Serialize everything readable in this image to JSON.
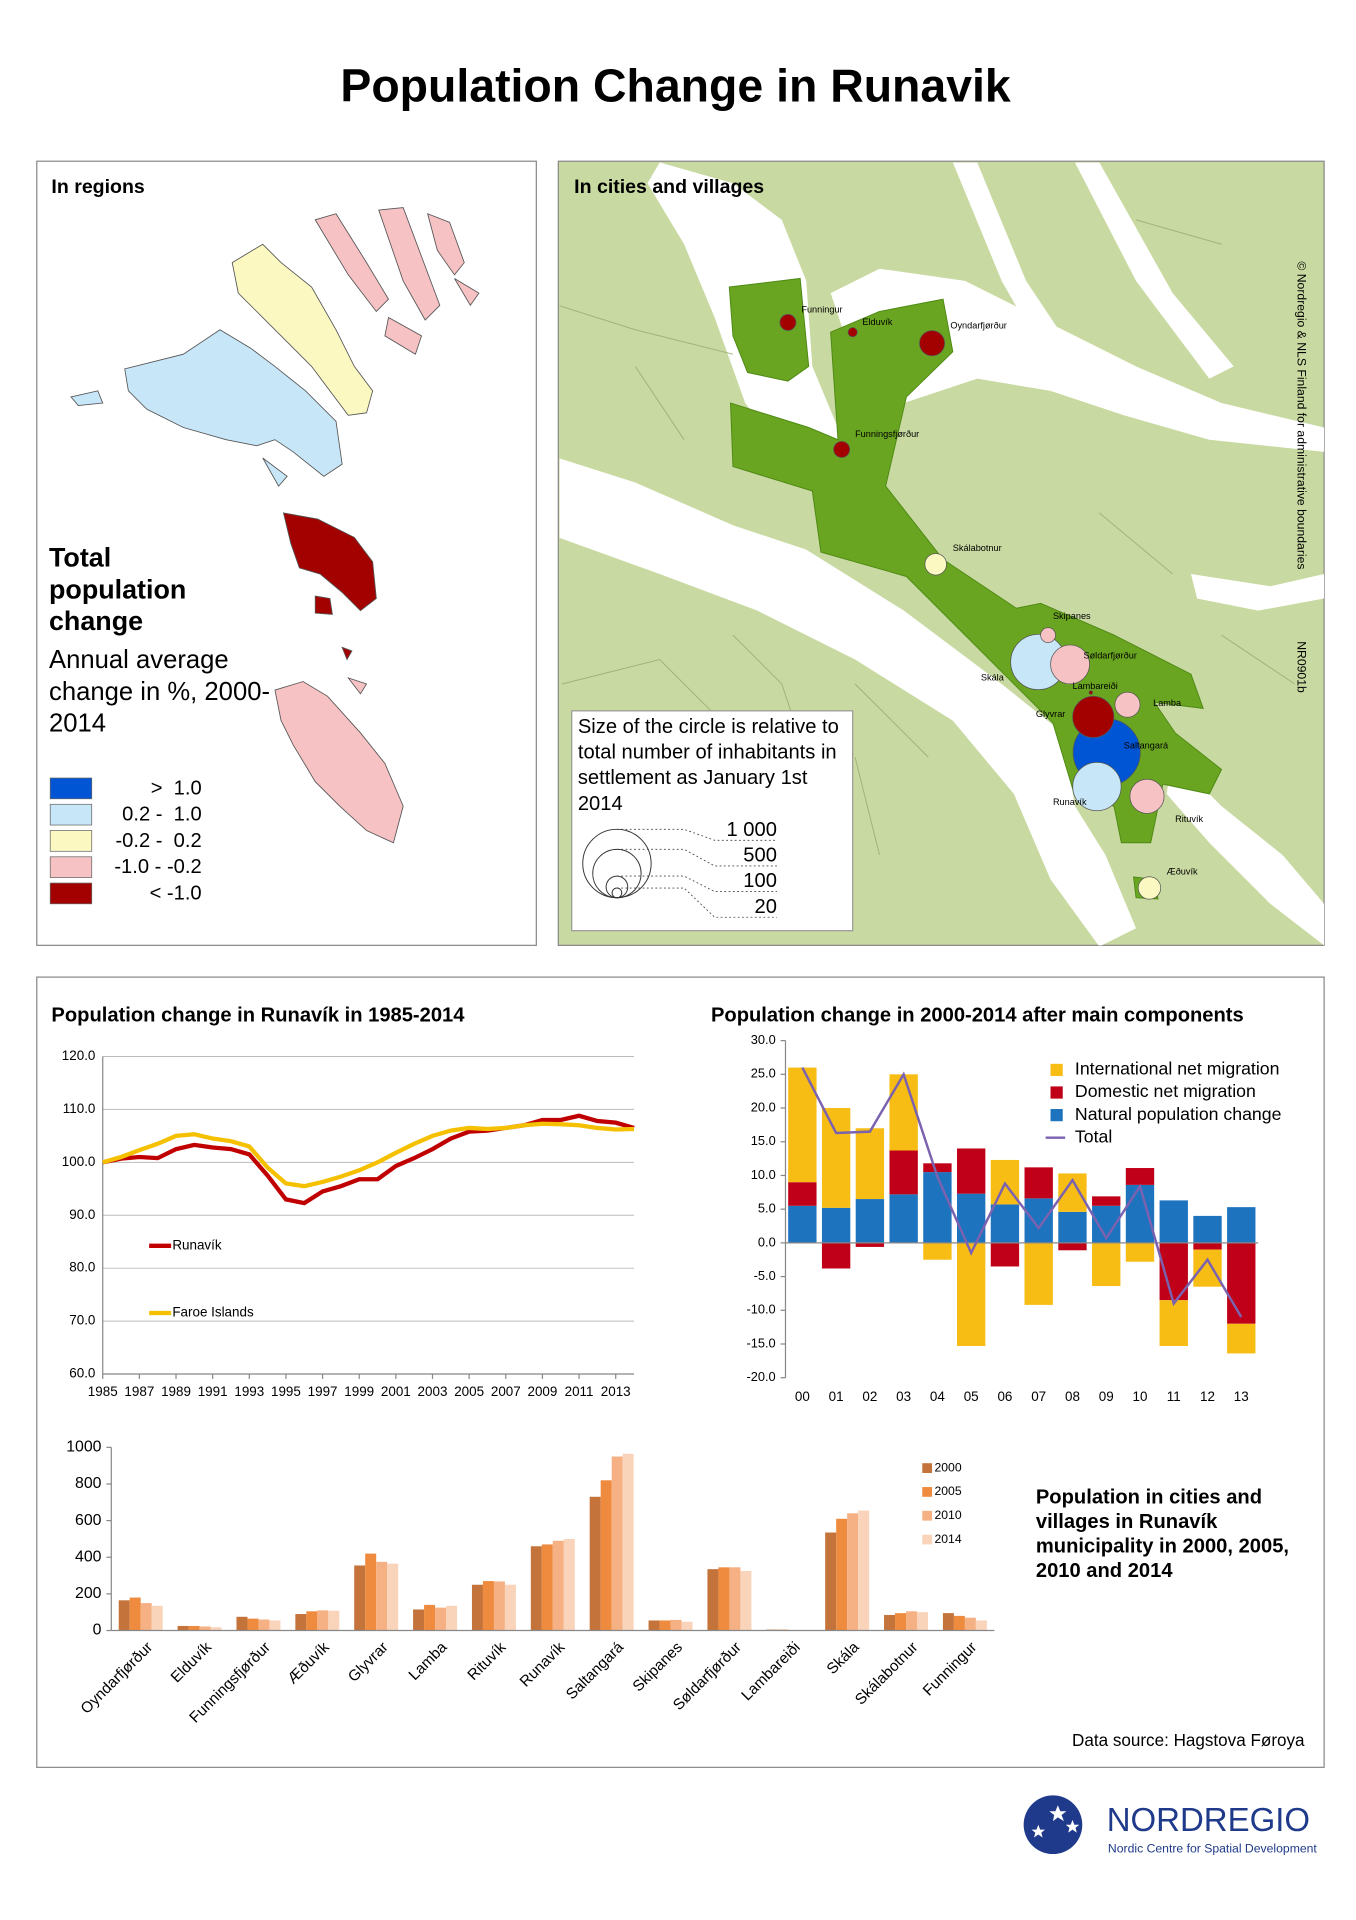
{
  "title": "Population Change in Runavik",
  "regions_map": {
    "heading": "In regions",
    "legend_title": "Total population change",
    "legend_subtitle": "Annual average change in %, 2000-2014",
    "classes": [
      {
        "label": ">  1.0",
        "color": "#0055d4"
      },
      {
        "label": "0.2 -  1.0",
        "color": "#c7e6f8"
      },
      {
        "label": "-0.2 -  0.2",
        "color": "#fbf8c2"
      },
      {
        "label": "-1.0 - -0.2",
        "color": "#f6c2c3"
      },
      {
        "label": "< -1.0",
        "color": "#a30000"
      }
    ]
  },
  "cities_map": {
    "heading": "In cities and villages",
    "copyright": "© Nordregio & NLS Finland for administrative boundaries",
    "map_id": "NR0901b",
    "circle_colors": [
      "#a30000",
      "#a30000",
      "#a30000",
      "#fbf8c2",
      "#a30000",
      "#f6c2c3",
      "#f6c2c3",
      "#c7e6f8",
      "#0055d4",
      "#f6c2c3",
      "#f6c2c3",
      "#a30000",
      "#c7e6f8",
      "#fbf8c2",
      "#a30000"
    ],
    "size_legend": {
      "text": "Size of the circle is relative to total number of inhabitants in settlement as January 1st 2014",
      "sizes": [
        {
          "value": 1000,
          "label": "1 000"
        },
        500,
        100,
        20
      ]
    }
  },
  "chart_data": [
    {
      "type": "line",
      "title": "Population change in Runavík in 1985-2014",
      "x": [
        1985,
        1986,
        1987,
        1988,
        1989,
        1990,
        1991,
        1992,
        1993,
        1994,
        1995,
        1996,
        1997,
        1998,
        1999,
        2000,
        2001,
        2002,
        2003,
        2004,
        2005,
        2006,
        2007,
        2008,
        2009,
        2010,
        2011,
        2012,
        2013,
        2014
      ],
      "xlim": [
        1985,
        2014
      ],
      "xticks": [
        1985,
        1987,
        1989,
        1991,
        1993,
        1995,
        1997,
        1999,
        2001,
        2003,
        2005,
        2007,
        2009,
        2011,
        2013
      ],
      "ylim": [
        60,
        120
      ],
      "yticks": [
        {
          "value": 60,
          "label": "60.0"
        },
        {
          "value": 70,
          "label": "70.0"
        },
        {
          "value": 80,
          "label": "80.0"
        },
        {
          "value": 90,
          "label": "90.0"
        },
        {
          "value": 100,
          "label": "100.0"
        },
        {
          "value": 110,
          "label": "110.0"
        },
        {
          "value": 120,
          "label": "120.0"
        }
      ],
      "grid": true,
      "series": [
        {
          "name": "Runavík",
          "color": "#c00000",
          "values": [
            100,
            100.7,
            101,
            100.8,
            102.5,
            103.3,
            102.8,
            102.5,
            101.5,
            97.5,
            93,
            92.3,
            94.5,
            95.5,
            96.8,
            96.8,
            99.3,
            100.8,
            102.5,
            104.5,
            105.8,
            106,
            106.5,
            107,
            108,
            108,
            108.8,
            107.8,
            107.5,
            106.5
          ]
        },
        {
          "name": "Faroe Islands",
          "color": "#f5c000",
          "values": [
            100,
            101,
            102.3,
            103.5,
            105,
            105.3,
            104.5,
            104,
            103,
            99,
            96,
            95.5,
            96.3,
            97.3,
            98.5,
            100,
            101.8,
            103.5,
            105,
            106,
            106.5,
            106.3,
            106.5,
            107,
            107.3,
            107.2,
            107,
            106.5,
            106.2,
            106.3
          ]
        }
      ]
    },
    {
      "type": "stacked_bar",
      "title": "Population change in 2000-2014 after main components",
      "categories": [
        "00",
        "01",
        "02",
        "03",
        "04",
        "05",
        "06",
        "07",
        "08",
        "09",
        "10",
        "11",
        "12",
        "13"
      ],
      "ylim": [
        -20,
        30
      ],
      "yticks": [
        {
          "value": -20,
          "label": "-20.0"
        },
        {
          "value": -15,
          "label": "-15.0"
        },
        {
          "value": -10,
          "label": "-10.0"
        },
        {
          "value": -5,
          "label": "-5.0"
        },
        {
          "value": 0,
          "label": "0.0"
        },
        {
          "value": 5,
          "label": "5.0"
        },
        {
          "value": 10,
          "label": "10.0"
        },
        {
          "value": 15,
          "label": "15.0"
        },
        {
          "value": 20,
          "label": "20.0"
        },
        {
          "value": 25,
          "label": "25.0"
        },
        {
          "value": 30,
          "label": "30.0"
        }
      ],
      "series": [
        {
          "name": "International net migration",
          "color": "#f7bd14",
          "values": [
            17,
            14.8,
            10.5,
            11.3,
            -2.5,
            -15.3,
            6.6,
            -9.2,
            5.7,
            -6.4,
            -2.8,
            -6.8,
            -5.5,
            -4.4
          ]
        },
        {
          "name": "Domestic net migration",
          "color": "#c00018",
          "values": [
            3.5,
            -3.8,
            -0.6,
            6.5,
            1.3,
            6.7,
            -3.5,
            4.6,
            -1.1,
            1.4,
            2.5,
            -8.5,
            -1,
            -12
          ]
        },
        {
          "name": "Natural population change",
          "color": "#1e73be",
          "values": [
            5.5,
            5.2,
            6.5,
            7.2,
            10.5,
            7.3,
            5.7,
            6.6,
            4.6,
            5.5,
            8.6,
            6.3,
            4,
            5.3
          ]
        },
        {
          "name": "Total",
          "color": "#7a62b0",
          "type": "line",
          "values": [
            26,
            16.3,
            16.5,
            25,
            9.8,
            -1.5,
            8.8,
            2.2,
            9.3,
            0.7,
            8.4,
            -9,
            -2.5,
            -11
          ]
        }
      ]
    },
    {
      "type": "grouped_bar",
      "title": "Population in cities and villages in Runavík municipality in 2000, 2005, 2010 and 2014",
      "categories": [
        "Oyndarfjørður",
        "Elduvík",
        "Funningsfjørður",
        "Æðuvík",
        "Glyvrar",
        "Lamba",
        "Rituvík",
        "Runavík",
        "Saltangará",
        "Skipanes",
        "Søldarfjørður",
        "Lambareiði",
        "Skála",
        "Skálabotnur",
        "Funningur"
      ],
      "ylim": [
        0,
        1000
      ],
      "yticks": [
        0,
        200,
        400,
        600,
        800,
        1000
      ],
      "series": [
        {
          "name": "2000",
          "color": "#c4733a",
          "values": [
            165,
            25,
            75,
            90,
            355,
            115,
            250,
            460,
            730,
            55,
            335,
            5,
            535,
            85,
            95
          ]
        },
        {
          "name": "2005",
          "color": "#ee8b3e",
          "values": [
            180,
            25,
            65,
            105,
            420,
            140,
            270,
            470,
            820,
            55,
            345,
            5,
            610,
            95,
            80
          ]
        },
        {
          "name": "2010",
          "color": "#f5b184",
          "values": [
            150,
            22,
            60,
            110,
            375,
            125,
            268,
            490,
            950,
            58,
            345,
            3,
            640,
            105,
            70
          ]
        },
        {
          "name": "2014",
          "color": "#f9d3ba",
          "values": [
            135,
            18,
            55,
            108,
            365,
            135,
            250,
            500,
            965,
            48,
            325,
            2,
            655,
            100,
            55
          ]
        }
      ]
    }
  ],
  "data_source": "Data source: Hagstova Føroya",
  "logo": {
    "name": "NORDREGIO",
    "tagline": "Nordic Centre for Spatial Development"
  }
}
